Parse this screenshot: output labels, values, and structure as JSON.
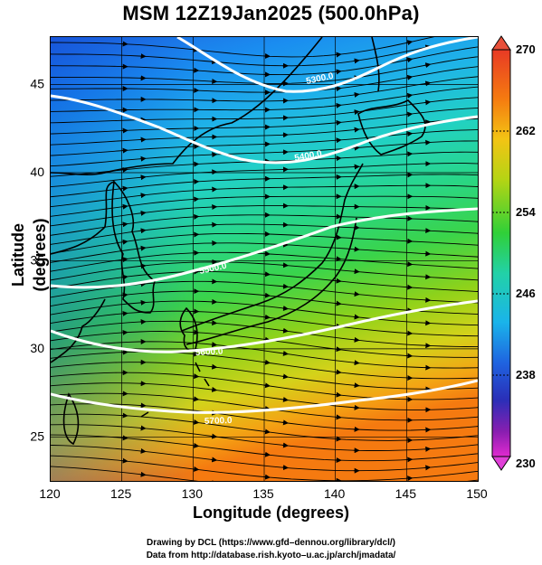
{
  "title": "MSM 12Z19Jan2025 (500.0hPa)",
  "xlabel": "Longitude (degrees)",
  "ylabel": "Latitude  (degrees)",
  "x_ticks": [
    "120",
    "125",
    "130",
    "135",
    "140",
    "145",
    "150"
  ],
  "y_ticks": [
    "25",
    "30",
    "35",
    "40",
    "45"
  ],
  "colorbar": {
    "labels": [
      "270",
      "262",
      "254",
      "246",
      "238",
      "230"
    ],
    "min": 230,
    "max": 270
  },
  "contours": [
    "5300.0",
    "5400.0",
    "5500.0",
    "5600.0",
    "5700.0"
  ],
  "footer": {
    "line1": "Drawing by DCL (https://www.gfd–dennou.org/library/dcl/)",
    "line2": "Data from http://database.rish.kyoto–u.ac.jp/arch/jmadata/"
  },
  "map": {
    "lon_range": [
      120,
      150
    ],
    "lat_range": [
      22.5,
      47.7
    ],
    "grid_lons": [
      125,
      130,
      135,
      140,
      145
    ],
    "grid_lats": [
      25,
      30,
      35,
      40,
      45
    ]
  }
}
